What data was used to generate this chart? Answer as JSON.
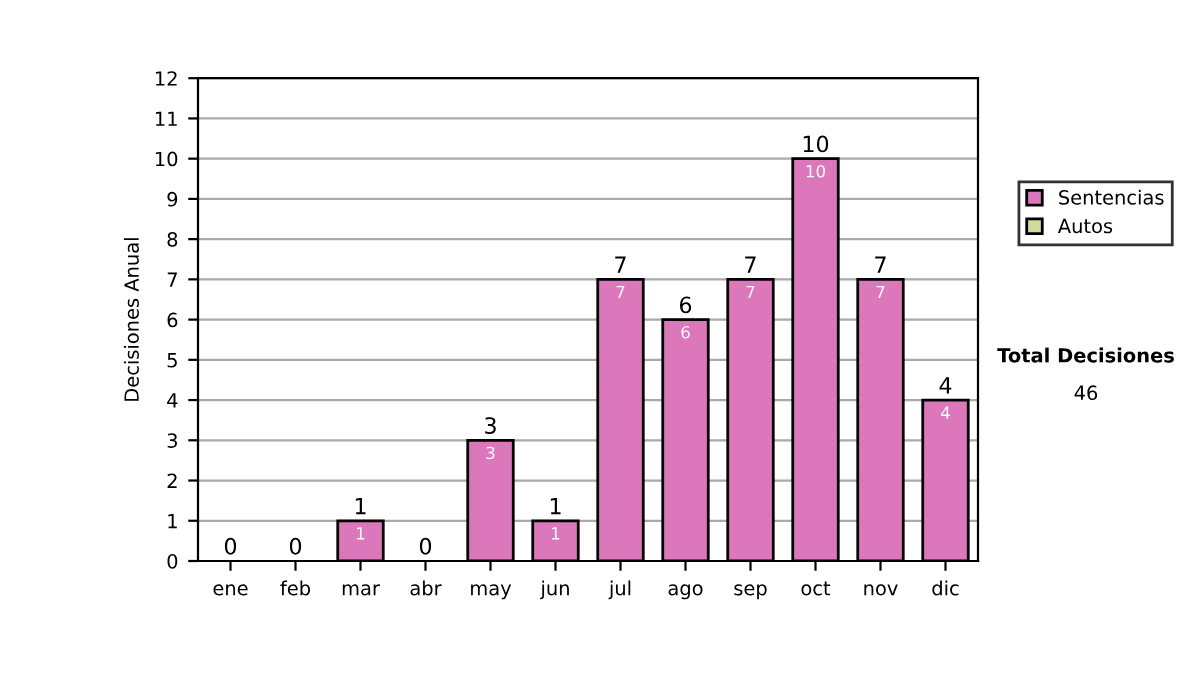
{
  "chart_data": {
    "type": "bar",
    "stacked": true,
    "ylabel": "Decisiones Anual",
    "categories": [
      "ene",
      "feb",
      "mar",
      "abr",
      "may",
      "jun",
      "jul",
      "ago",
      "sep",
      "oct",
      "nov",
      "dic"
    ],
    "series": [
      {
        "name": "Sentencias",
        "color": "#dd77bb",
        "values": [
          0,
          0,
          1,
          0,
          3,
          1,
          7,
          6,
          7,
          10,
          7,
          4
        ],
        "value_labels": [
          null,
          null,
          "1",
          null,
          "3",
          "1",
          "7",
          "6",
          "7",
          "10",
          "7",
          "4"
        ]
      },
      {
        "name": "Autos",
        "color": "#ccdd99",
        "values": [
          0,
          0,
          0,
          0,
          0,
          0,
          0,
          0,
          0,
          0,
          0,
          0
        ]
      }
    ],
    "totals": [
      "0",
      "0",
      "1",
      "0",
      "3",
      "1",
      "7",
      "6",
      "7",
      "10",
      "7",
      "4"
    ],
    "ylim": [
      0,
      12
    ],
    "yticks": [
      0,
      1,
      2,
      3,
      4,
      5,
      6,
      7,
      8,
      9,
      10,
      11,
      12
    ],
    "grid": "y",
    "legend": "right",
    "annotations": [
      "Total Decisiones",
      "46"
    ]
  }
}
